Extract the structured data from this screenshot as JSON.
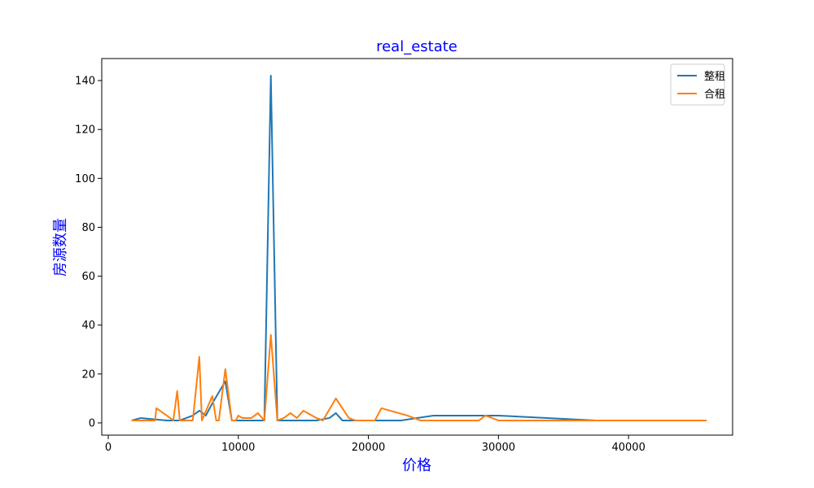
{
  "chart_data": {
    "type": "line",
    "title": "real_estate",
    "xlabel": "价格",
    "ylabel": "房源数量",
    "xlim": [
      -500,
      48000
    ],
    "ylim": [
      -5,
      149
    ],
    "xticks": [
      0,
      10000,
      20000,
      30000,
      40000
    ],
    "yticks": [
      0,
      20,
      40,
      60,
      80,
      100,
      120,
      140
    ],
    "legend_position": "top-right",
    "grid": false,
    "series": [
      {
        "name": "整租",
        "color": "#1f77b4",
        "x": [
          1800,
          2500,
          3500,
          4500,
          5000,
          5500,
          6000,
          6500,
          7000,
          7500,
          8000,
          9000,
          9500,
          10000,
          11000,
          12000,
          12500,
          13000,
          14000,
          15000,
          16000,
          17000,
          17500,
          18000,
          20000,
          22500,
          25000,
          28000,
          30000,
          37500,
          46000
        ],
        "y": [
          1,
          2,
          1.5,
          1,
          1,
          1,
          2,
          3,
          5,
          3,
          8,
          17,
          1,
          1,
          1,
          1,
          142,
          1,
          1,
          1,
          1,
          2,
          4,
          1,
          1,
          1,
          3,
          3,
          3,
          1,
          1
        ]
      },
      {
        "name": "合租",
        "color": "#ff7f0e",
        "x": [
          1800,
          3000,
          3600,
          3700,
          4500,
          5000,
          5300,
          5500,
          6000,
          6500,
          7000,
          7200,
          8000,
          8300,
          8500,
          9000,
          9500,
          9800,
          10000,
          10300,
          11000,
          11500,
          12000,
          12500,
          13000,
          13500,
          14000,
          14500,
          15000,
          16000,
          16500,
          17500,
          18500,
          19000,
          20500,
          21000,
          23000,
          24000,
          25000,
          28000,
          28500,
          29000,
          30000,
          46000
        ],
        "y": [
          1,
          1,
          1,
          6,
          3,
          1,
          13,
          1,
          1,
          1,
          27,
          1,
          11,
          1,
          1,
          22,
          1,
          1,
          3,
          2,
          2,
          4,
          1,
          36,
          1,
          2,
          4,
          2,
          5,
          2,
          1,
          10,
          2,
          1,
          1,
          6,
          3,
          1,
          1,
          1,
          1,
          3,
          1,
          1
        ]
      }
    ]
  }
}
